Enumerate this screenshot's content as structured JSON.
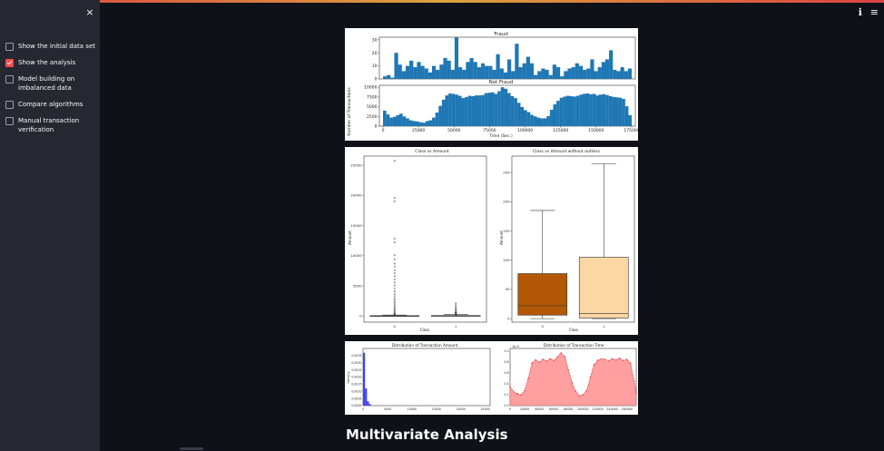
{
  "sidebar": {
    "items": [
      {
        "label": "Show the initial data set",
        "checked": false
      },
      {
        "label": "Show the analysis",
        "checked": true
      },
      {
        "label": "Model building on imbalanced data",
        "checked": false
      },
      {
        "label": "Compare algorithms",
        "checked": false
      },
      {
        "label": "Manual transaction verification",
        "checked": false
      }
    ]
  },
  "header": {
    "close_icon": "×",
    "info_icon": "ℹ",
    "menu_icon": "≡"
  },
  "main": {
    "heading": "Multivariate Analysis"
  },
  "chart_data": [
    {
      "type": "bar",
      "title": "Fraud",
      "ylabel": "Number of Transactions",
      "ylim": [
        0,
        32
      ],
      "yticks": [
        0,
        10,
        20,
        30
      ],
      "values": [
        2,
        3,
        1,
        20,
        11,
        6,
        10,
        14,
        9,
        13,
        10,
        8,
        5,
        10,
        7,
        11,
        16,
        14,
        7,
        32,
        9,
        7,
        13,
        16,
        13,
        9,
        12,
        10,
        10,
        7,
        19,
        8,
        5,
        15,
        6,
        27,
        9,
        12,
        17,
        12,
        3,
        6,
        8,
        7,
        3,
        11,
        9,
        2,
        6,
        8,
        9,
        12,
        10,
        7,
        8,
        15,
        6,
        9,
        13,
        15,
        22,
        7,
        6,
        9,
        6,
        8
      ],
      "color": "#1f77b4"
    },
    {
      "type": "bar",
      "title": "Not Fraud",
      "xlabel": "Time (Sec.)",
      "xlim": [
        0,
        175000
      ],
      "ylim": [
        0,
        10500
      ],
      "xticks": [
        0,
        25000,
        50000,
        75000,
        100000,
        125000,
        150000,
        175000
      ],
      "yticks": [
        0,
        2500,
        5000,
        7500,
        10000
      ],
      "values": [
        4000,
        3000,
        2200,
        2400,
        2800,
        3200,
        2500,
        2000,
        1500,
        1300,
        1200,
        1000,
        900,
        1300,
        1500,
        2200,
        3500,
        5200,
        6800,
        7900,
        8400,
        8300,
        8100,
        7800,
        7200,
        7500,
        7800,
        7700,
        7900,
        7900,
        8000,
        8500,
        8600,
        8700,
        8300,
        9000,
        10000,
        9600,
        8500,
        7700,
        7200,
        6000,
        4900,
        4100,
        3600,
        2900,
        2500,
        2200,
        2000,
        2000,
        2600,
        4200,
        5600,
        6500,
        7300,
        7600,
        7800,
        7700,
        7600,
        7800,
        8100,
        8300,
        8400,
        8200,
        8300,
        7900,
        8100,
        8200,
        8000,
        7700,
        7500,
        7400,
        7300,
        7000,
        5100,
        2800
      ],
      "color": "#1f77b4"
    },
    {
      "type": "box",
      "title": "Class vs Amount",
      "xlabel": "Class",
      "ylabel": "Amount",
      "categories": [
        "0",
        "1"
      ],
      "ylim": [
        -1000,
        26500
      ],
      "yticks": [
        0,
        5000,
        10000,
        15000,
        20000,
        25000
      ],
      "boxes": [
        {
          "q1": 6,
          "median": 22,
          "q3": 77,
          "whisker_low": 0,
          "whisker_high": 185,
          "outliers": [
            25700,
            19600,
            19000,
            12800,
            12200,
            10100,
            9400,
            8700,
            8200,
            7600,
            7100,
            6600,
            6100,
            5600,
            5100,
            4600,
            4100,
            3700,
            3300,
            2900,
            2600,
            2300,
            2000,
            1700,
            1400,
            1200,
            1000,
            800,
            600,
            450,
            350,
            250
          ]
        },
        {
          "q1": 1,
          "median": 9,
          "q3": 105,
          "whisker_low": 0,
          "whisker_high": 265,
          "outliers": [
            2100,
            1800,
            1500,
            1300,
            1100,
            900,
            750,
            620,
            520,
            430,
            360,
            300
          ]
        }
      ]
    },
    {
      "type": "box",
      "title": "Class vs Amount without outliers",
      "xlabel": "Class",
      "ylabel": "Amount",
      "categories": [
        "0",
        "1"
      ],
      "ylim": [
        -6,
        278
      ],
      "yticks": [
        0,
        50,
        100,
        150,
        200,
        250
      ],
      "boxes": [
        {
          "q1": 6,
          "median": 22,
          "q3": 77,
          "whisker_low": 0,
          "whisker_high": 185,
          "color": "#b35806"
        },
        {
          "q1": 1,
          "median": 9,
          "q3": 105,
          "whisker_low": 0,
          "whisker_high": 265,
          "color": "#fbd7a4"
        }
      ]
    },
    {
      "type": "bar",
      "title": "Distribution of Transaction Amount",
      "ylabel": "Density",
      "xlim": [
        0,
        26000
      ],
      "ylim": [
        0,
        0.004
      ],
      "xticks": [
        0,
        5000,
        10000,
        15000,
        20000,
        25000
      ],
      "yticks": [
        "0.0000",
        "0.0005",
        "0.0010",
        "0.0015",
        "0.0020",
        "0.0025",
        "0.0030",
        "0.0035"
      ],
      "values": [
        0.0037,
        0.0012,
        0.0003,
        0.0001
      ],
      "color": "#4040ff"
    },
    {
      "type": "area",
      "title": "Distribution of Transaction Time",
      "scale_note": "1e-5",
      "xlim": [
        0,
        172800
      ],
      "ylim": [
        0,
        1.05
      ],
      "xticks": [
        0,
        20000,
        40000,
        60000,
        80000,
        100000,
        120000,
        140000,
        160000
      ],
      "yticks": [
        "0.0",
        "0.2",
        "0.4",
        "0.6",
        "0.8",
        "1.0"
      ],
      "x": [
        0,
        5000,
        10000,
        15000,
        20000,
        25000,
        30000,
        35000,
        40000,
        45000,
        50000,
        55000,
        60000,
        65000,
        70000,
        75000,
        80000,
        85000,
        90000,
        95000,
        100000,
        105000,
        110000,
        115000,
        120000,
        125000,
        130000,
        135000,
        140000,
        145000,
        150000,
        155000,
        160000,
        165000,
        170000,
        172800
      ],
      "values": [
        0.35,
        0.25,
        0.22,
        0.2,
        0.28,
        0.5,
        0.78,
        0.84,
        0.8,
        0.85,
        0.82,
        0.86,
        0.83,
        0.9,
        0.97,
        0.9,
        0.65,
        0.42,
        0.26,
        0.18,
        0.2,
        0.28,
        0.52,
        0.75,
        0.83,
        0.86,
        0.85,
        0.82,
        0.86,
        0.84,
        0.87,
        0.83,
        0.85,
        0.78,
        0.45,
        0.22
      ],
      "color": "#ff7f7f"
    }
  ]
}
